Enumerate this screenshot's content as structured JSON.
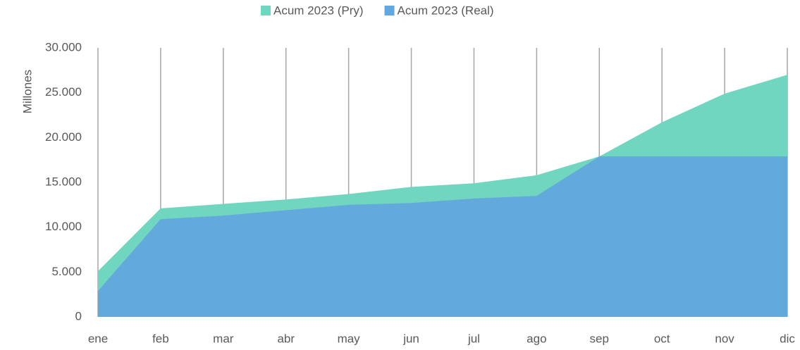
{
  "chart_data": {
    "type": "area",
    "y_label": "Millones",
    "categories": [
      "ene",
      "feb",
      "mar",
      "abr",
      "may",
      "jun",
      "jul",
      "ago",
      "sep",
      "oct",
      "nov",
      "dic"
    ],
    "series": [
      {
        "name": "Acum 2023 (Pry)",
        "color": "#70d6c0",
        "values": [
          5100,
          12100,
          12600,
          13100,
          13700,
          14500,
          14900,
          15800,
          17900,
          21700,
          24900,
          27000
        ]
      },
      {
        "name": "Acum 2023 (Real)",
        "color": "#62a8dc",
        "values": [
          2900,
          10900,
          11300,
          11900,
          12500,
          12700,
          13200,
          13500,
          17900,
          17900,
          17900,
          17900
        ]
      }
    ],
    "ylim": [
      0,
      30000
    ],
    "yticks": [
      0,
      {
        "value": 5000,
        "label": "5.000"
      },
      {
        "value": 10000,
        "label": "10.000"
      },
      {
        "value": 15000,
        "label": "15.000"
      },
      {
        "value": 20000,
        "label": "20.000"
      },
      {
        "value": 25000,
        "label": "25.000"
      },
      {
        "value": 30000,
        "label": "30.000"
      }
    ],
    "grid": true,
    "legend": "top"
  }
}
